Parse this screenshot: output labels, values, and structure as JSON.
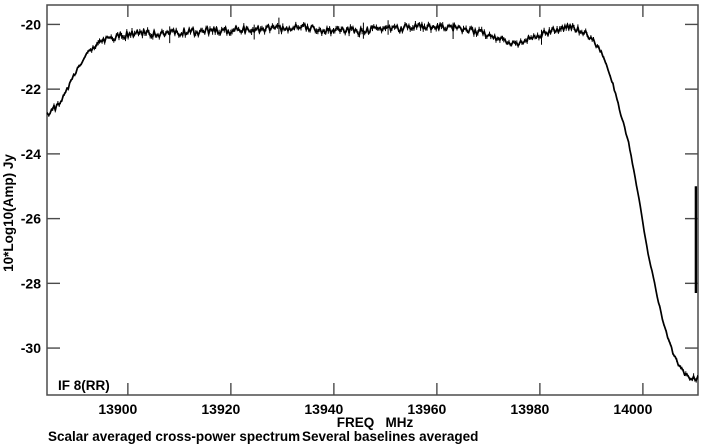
{
  "chart_data": {
    "type": "line",
    "title": "",
    "xlabel": "FREQ   MHz",
    "ylabel": "10*Log10(Amp) Jy",
    "if_label": "IF 8(RR)",
    "caption": {
      "left": "Scalar averaged cross-power spectrum",
      "right": "Several baselines averaged"
    },
    "x_ticks": [
      13900,
      13920,
      13940,
      13960,
      13980,
      14000
    ],
    "y_ticks": [
      -20,
      -22,
      -24,
      -26,
      -28,
      -30
    ],
    "xlim": [
      13884.3,
      14010.7
    ],
    "ylim": [
      -31.45,
      -19.4
    ],
    "grid": false,
    "legend": "none",
    "axis_color": "#4b4b4b",
    "data_color": "#000000",
    "noise_db": 0.06,
    "series": [
      {
        "name": "scalar averaged cross-power spectrum, IF 8 (RR)",
        "points": [
          [
            13884.4,
            -22.72
          ],
          [
            13884.9,
            -22.8
          ],
          [
            13885.4,
            -22.55
          ],
          [
            13885.9,
            -22.62
          ],
          [
            13886.4,
            -22.5
          ],
          [
            13886.9,
            -22.42
          ],
          [
            13887.5,
            -22.18
          ],
          [
            13888.2,
            -22.0
          ],
          [
            13888.9,
            -21.8
          ],
          [
            13889.6,
            -21.55
          ],
          [
            13890.3,
            -21.38
          ],
          [
            13891.0,
            -21.2
          ],
          [
            13891.8,
            -21.0
          ],
          [
            13892.6,
            -20.82
          ],
          [
            13893.4,
            -20.68
          ],
          [
            13894.2,
            -20.58
          ],
          [
            13895.0,
            -20.52
          ],
          [
            13895.8,
            -20.47
          ],
          [
            13896.6,
            -20.4
          ],
          [
            13897.4,
            -20.46
          ],
          [
            13898.2,
            -20.34
          ],
          [
            13899.0,
            -20.33
          ],
          [
            13900.0,
            -20.31
          ],
          [
            13902.0,
            -20.28
          ],
          [
            13904.0,
            -20.25
          ],
          [
            13906.0,
            -20.29
          ],
          [
            13908.0,
            -20.22
          ],
          [
            13910.0,
            -20.26
          ],
          [
            13912.0,
            -20.2
          ],
          [
            13914.0,
            -20.24
          ],
          [
            13916.0,
            -20.19
          ],
          [
            13918.0,
            -20.22
          ],
          [
            13920.0,
            -20.18
          ],
          [
            13922.0,
            -20.15
          ],
          [
            13924.0,
            -20.19
          ],
          [
            13926.0,
            -20.14
          ],
          [
            13928.0,
            -20.12
          ],
          [
            13930.0,
            -20.16
          ],
          [
            13932.0,
            -20.09
          ],
          [
            13933.6,
            -20.03
          ],
          [
            13935.0,
            -20.13
          ],
          [
            13937.0,
            -20.16
          ],
          [
            13939.0,
            -20.2
          ],
          [
            13941.0,
            -20.23
          ],
          [
            13943.0,
            -20.19
          ],
          [
            13945.0,
            -20.22
          ],
          [
            13947.0,
            -20.17
          ],
          [
            13949.0,
            -20.12
          ],
          [
            13951.0,
            -20.1
          ],
          [
            13953.0,
            -20.13
          ],
          [
            13955.0,
            -20.07
          ],
          [
            13957.0,
            -20.08
          ],
          [
            13959.0,
            -20.11
          ],
          [
            13961.0,
            -20.06
          ],
          [
            13963.0,
            -20.1
          ],
          [
            13965.0,
            -20.14
          ],
          [
            13967.0,
            -20.19
          ],
          [
            13969.0,
            -20.27
          ],
          [
            13971.0,
            -20.38
          ],
          [
            13973.0,
            -20.52
          ],
          [
            13974.5,
            -20.6
          ],
          [
            13975.3,
            -20.64
          ],
          [
            13976.2,
            -20.58
          ],
          [
            13977.2,
            -20.5
          ],
          [
            13978.5,
            -20.4
          ],
          [
            13980.0,
            -20.31
          ],
          [
            13981.5,
            -20.24
          ],
          [
            13983.0,
            -20.17
          ],
          [
            13984.5,
            -20.12
          ],
          [
            13985.8,
            -20.09
          ],
          [
            13987.0,
            -20.12
          ],
          [
            13988.2,
            -20.2
          ],
          [
            13989.3,
            -20.33
          ],
          [
            13990.3,
            -20.5
          ],
          [
            13991.3,
            -20.72
          ],
          [
            13992.3,
            -21.0
          ],
          [
            13993.2,
            -21.35
          ],
          [
            13994.0,
            -21.75
          ],
          [
            13994.8,
            -22.22
          ],
          [
            13995.6,
            -22.7
          ],
          [
            13996.4,
            -23.15
          ],
          [
            13997.2,
            -23.65
          ],
          [
            13998.0,
            -24.3
          ],
          [
            13998.8,
            -25.0
          ],
          [
            13999.6,
            -25.75
          ],
          [
            14000.4,
            -26.55
          ],
          [
            14001.2,
            -27.25
          ],
          [
            14002.2,
            -27.95
          ],
          [
            14003.2,
            -28.7
          ],
          [
            14004.2,
            -29.35
          ],
          [
            14005.2,
            -29.85
          ],
          [
            14006.2,
            -30.3
          ],
          [
            14007.2,
            -30.6
          ],
          [
            14008.0,
            -30.78
          ],
          [
            14008.8,
            -30.88
          ],
          [
            14009.4,
            -31.0
          ],
          [
            14009.9,
            -30.92
          ],
          [
            14010.3,
            -31.05
          ],
          [
            14010.6,
            -30.9
          ]
        ]
      }
    ],
    "edge_spike": {
      "freq": 14010.3,
      "amp_top": -25.0,
      "amp_bottom": -28.3
    }
  }
}
